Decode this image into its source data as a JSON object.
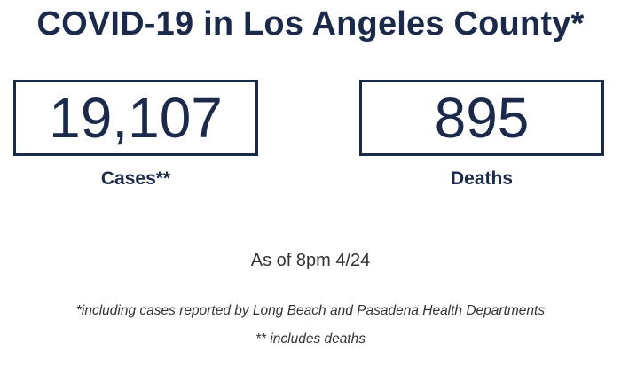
{
  "header": {
    "title": "COVID-19 in Los Angeles County*"
  },
  "stats": {
    "cases": {
      "value": "19,107",
      "label": "Cases**"
    },
    "deaths": {
      "value": "895",
      "label": "Deaths"
    }
  },
  "as_of": "As of 8pm 4/24",
  "footnotes": {
    "cases_note": "*including cases reported by Long Beach and Pasadena Health Departments",
    "deaths_note": "** includes deaths"
  },
  "colors": {
    "primary": "#1b2a4a",
    "text_secondary": "#333333",
    "background": "#ffffff"
  }
}
